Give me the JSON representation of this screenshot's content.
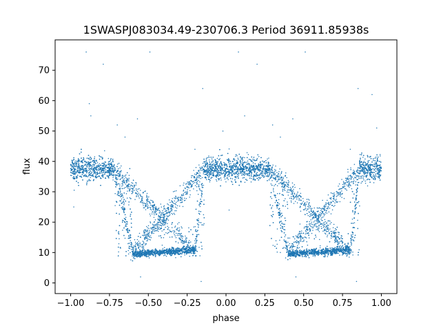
{
  "chart_data": {
    "type": "scatter",
    "title": "1SWASPJ083034.49-230706.3 Period 36911.85938s",
    "xlabel": "phase",
    "ylabel": "flux",
    "xlim": [
      -1.1,
      1.1
    ],
    "ylim": [
      -3.5,
      80
    ],
    "xticks": [
      -1.0,
      -0.75,
      -0.5,
      -0.25,
      0.0,
      0.25,
      0.5,
      0.75,
      1.0
    ],
    "xtick_labels": [
      "−1.00",
      "−0.75",
      "−0.50",
      "−0.25",
      "0.00",
      "0.25",
      "0.50",
      "0.75",
      "1.00"
    ],
    "yticks": [
      0,
      10,
      20,
      30,
      40,
      50,
      60,
      70
    ],
    "ytick_labels": [
      "0",
      "10",
      "20",
      "30",
      "40",
      "50",
      "60",
      "70"
    ],
    "grid": false,
    "point_color": "#1f77b4",
    "baseline_flux": 37.5,
    "eclipse_min_flux": 10,
    "eclipses": [
      {
        "phase_start": -0.72,
        "phase_bottom_start": -0.6,
        "phase_bottom_end": -0.2,
        "phase_end": -0.14
      },
      {
        "phase_start": 0.28,
        "phase_bottom_start": 0.4,
        "phase_bottom_end": 0.8,
        "phase_end": 0.86
      }
    ],
    "outliers": [
      {
        "x": -0.9,
        "y": 76
      },
      {
        "x": 0.08,
        "y": 76
      },
      {
        "x": -0.49,
        "y": 76
      },
      {
        "x": 0.51,
        "y": 76
      },
      {
        "x": -0.79,
        "y": 72
      },
      {
        "x": 0.2,
        "y": 72
      },
      {
        "x": -0.15,
        "y": 64
      },
      {
        "x": 0.85,
        "y": 64
      },
      {
        "x": -0.88,
        "y": 59
      },
      {
        "x": 0.94,
        "y": 62
      },
      {
        "x": -0.87,
        "y": 55
      },
      {
        "x": 0.12,
        "y": 55
      },
      {
        "x": -0.57,
        "y": 54
      },
      {
        "x": 0.43,
        "y": 54
      },
      {
        "x": -0.02,
        "y": 50
      },
      {
        "x": 0.97,
        "y": 51
      },
      {
        "x": -0.7,
        "y": 52
      },
      {
        "x": 0.3,
        "y": 52
      },
      {
        "x": -0.98,
        "y": 25
      },
      {
        "x": 0.02,
        "y": 24
      },
      {
        "x": -0.55,
        "y": 2
      },
      {
        "x": 0.45,
        "y": 2
      },
      {
        "x": -0.16,
        "y": 0.5
      },
      {
        "x": 0.84,
        "y": 0.5
      },
      {
        "x": -0.2,
        "y": 44
      },
      {
        "x": 0.8,
        "y": 44
      },
      {
        "x": 0.35,
        "y": 48
      },
      {
        "x": -0.65,
        "y": 48
      }
    ]
  }
}
